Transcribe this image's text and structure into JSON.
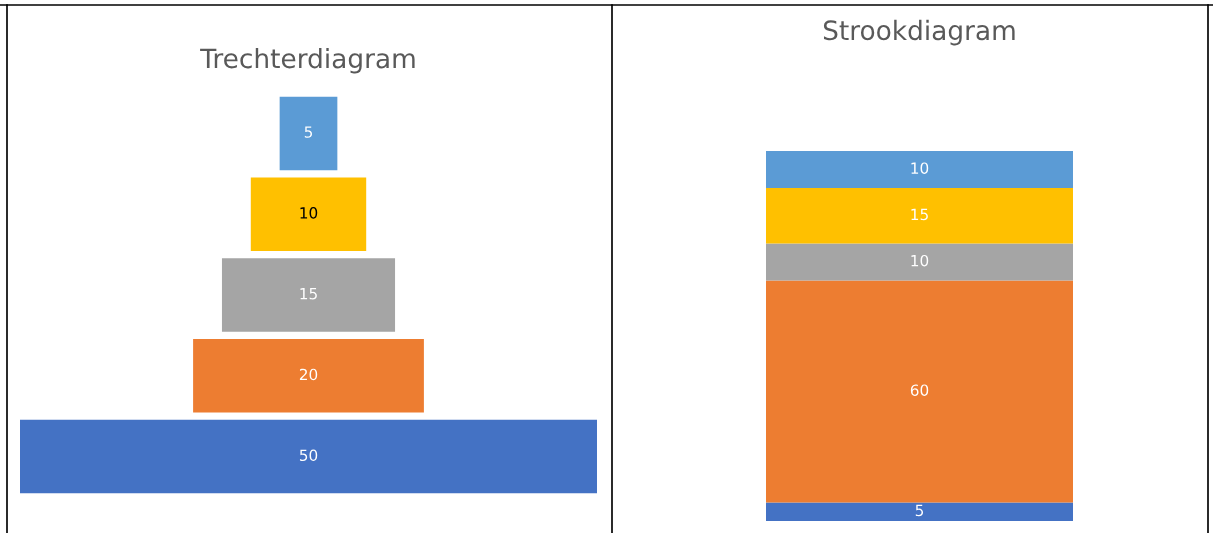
{
  "chart_data": [
    {
      "type": "other",
      "title": "Trechterdiagram",
      "categories": [
        null,
        null,
        null,
        null,
        null
      ],
      "values": [
        5,
        10,
        15,
        20,
        50
      ],
      "colors": [
        "#5b9bd5",
        "#ffc000",
        "#a5a5a5",
        "#ed7d31",
        "#4472c4"
      ],
      "data_labels": true
    },
    {
      "type": "bar",
      "title": "Strookdiagram",
      "categories": [
        null
      ],
      "stacked": true,
      "data_labels": true,
      "series": [
        {
          "color": "#4472c4",
          "values": [
            5
          ]
        },
        {
          "color": "#ed7d31",
          "values": [
            60
          ]
        },
        {
          "color": "#a5a5a5",
          "values": [
            10
          ]
        },
        {
          "color": "#ffc000",
          "values": [
            15
          ]
        },
        {
          "color": "#5b9bd5",
          "values": [
            10
          ]
        }
      ]
    }
  ]
}
